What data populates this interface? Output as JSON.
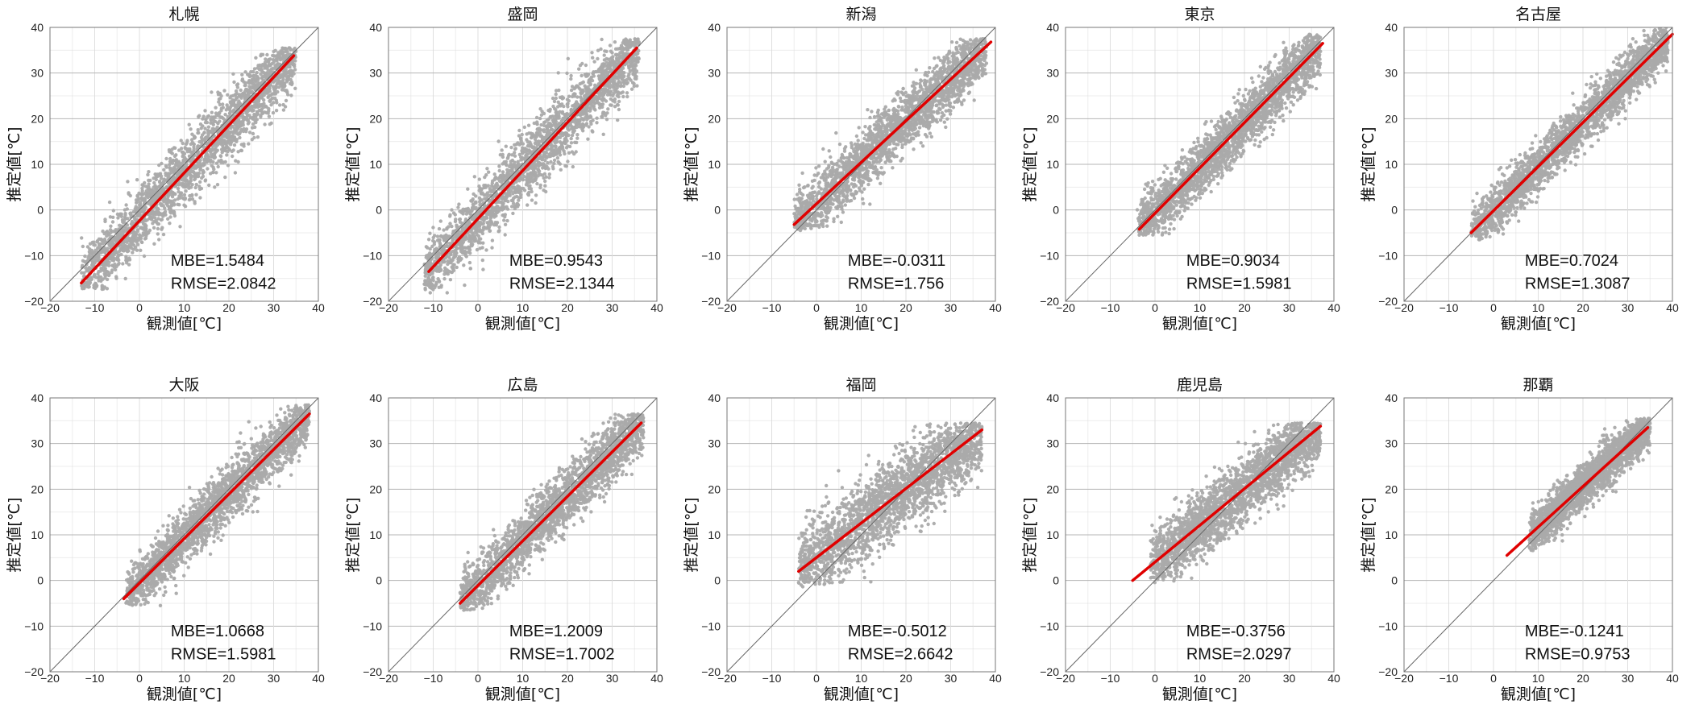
{
  "figure": {
    "xlabel": "観測値[℃]",
    "ylabel": "推定値[℃]",
    "xlim": [
      -20,
      40
    ],
    "ylim": [
      -20,
      40
    ],
    "xticks": [
      "−20",
      "−10",
      "0",
      "10",
      "20",
      "30",
      "40"
    ],
    "yticks": [
      "−20",
      "−10",
      "0",
      "10",
      "20",
      "30",
      "40"
    ],
    "grid": true,
    "colors": {
      "scatter": "#aaaaaa",
      "fit_line": "#e00000",
      "identity_line": "#666666"
    }
  },
  "chart_data": [
    {
      "type": "scatter",
      "title": "札幌",
      "xlabel": "観測値[℃]",
      "ylabel": "推定値[℃]",
      "xlim": [
        -20,
        40
      ],
      "ylim": [
        -20,
        40
      ],
      "mbe_text": "MBE=1.5484",
      "rmse_text": "RMSE=2.0842",
      "MBE": 1.5484,
      "RMSE": 2.0842,
      "data_range": {
        "x": [
          -13,
          35
        ],
        "y": [
          -16,
          34
        ]
      },
      "fit_line": {
        "x": [
          -13,
          34.5
        ],
        "y": [
          -16,
          33.8
        ]
      },
      "identity_line": {
        "x": [
          -20,
          40
        ],
        "y": [
          -20,
          40
        ]
      }
    },
    {
      "type": "scatter",
      "title": "盛岡",
      "xlabel": "観測値[℃]",
      "ylabel": "推定値[℃]",
      "xlim": [
        -20,
        40
      ],
      "ylim": [
        -20,
        40
      ],
      "mbe_text": "MBE=0.9543",
      "rmse_text": "RMSE=2.1344",
      "MBE": 0.9543,
      "RMSE": 2.1344,
      "data_range": {
        "x": [
          -12,
          36
        ],
        "y": [
          -17,
          36
        ]
      },
      "fit_line": {
        "x": [
          -11,
          35.5
        ],
        "y": [
          -13.5,
          35.5
        ]
      },
      "identity_line": {
        "x": [
          -20,
          40
        ],
        "y": [
          -20,
          40
        ]
      }
    },
    {
      "type": "scatter",
      "title": "新潟",
      "xlabel": "観測値[℃]",
      "ylabel": "推定値[℃]",
      "xlim": [
        -20,
        40
      ],
      "ylim": [
        -20,
        40
      ],
      "mbe_text": "MBE=-0.0311",
      "rmse_text": "RMSE=1.756",
      "MBE": -0.0311,
      "RMSE": 1.756,
      "data_range": {
        "x": [
          -5,
          38
        ],
        "y": [
          -3,
          36
        ]
      },
      "fit_line": {
        "x": [
          -5,
          39
        ],
        "y": [
          -3.2,
          36.8
        ]
      },
      "identity_line": {
        "x": [
          -20,
          40
        ],
        "y": [
          -20,
          40
        ]
      }
    },
    {
      "type": "scatter",
      "title": "東京",
      "xlabel": "観測値[℃]",
      "ylabel": "推定値[℃]",
      "xlim": [
        -20,
        40
      ],
      "ylim": [
        -20,
        40
      ],
      "mbe_text": "MBE=0.9034",
      "rmse_text": "RMSE=1.5981",
      "MBE": 0.9034,
      "RMSE": 1.5981,
      "data_range": {
        "x": [
          -4,
          37
        ],
        "y": [
          -4,
          37
        ]
      },
      "fit_line": {
        "x": [
          -3.5,
          37.5
        ],
        "y": [
          -4.2,
          36.5
        ]
      },
      "identity_line": {
        "x": [
          -20,
          40
        ],
        "y": [
          -20,
          40
        ]
      }
    },
    {
      "type": "scatter",
      "title": "名古屋",
      "xlabel": "観測値[℃]",
      "ylabel": "推定値[℃]",
      "xlim": [
        -20,
        40
      ],
      "ylim": [
        -20,
        40
      ],
      "mbe_text": "MBE=0.7024",
      "rmse_text": "RMSE=1.3087",
      "MBE": 0.7024,
      "RMSE": 1.3087,
      "data_range": {
        "x": [
          -5,
          39
        ],
        "y": [
          -5,
          39
        ]
      },
      "fit_line": {
        "x": [
          -5,
          40
        ],
        "y": [
          -5,
          38.5
        ]
      },
      "identity_line": {
        "x": [
          -20,
          40
        ],
        "y": [
          -20,
          40
        ]
      }
    },
    {
      "type": "scatter",
      "title": "大阪",
      "xlabel": "観測値[℃]",
      "ylabel": "推定値[℃]",
      "xlim": [
        -20,
        40
      ],
      "ylim": [
        -20,
        40
      ],
      "mbe_text": "MBE=1.0668",
      "rmse_text": "RMSE=1.5981",
      "MBE": 1.0668,
      "RMSE": 1.5981,
      "data_range": {
        "x": [
          -3,
          38
        ],
        "y": [
          -4,
          37
        ]
      },
      "fit_line": {
        "x": [
          -3.5,
          38
        ],
        "y": [
          -4,
          36.5
        ]
      },
      "identity_line": {
        "x": [
          -20,
          40
        ],
        "y": [
          -20,
          40
        ]
      }
    },
    {
      "type": "scatter",
      "title": "広島",
      "xlabel": "観測値[℃]",
      "ylabel": "推定値[℃]",
      "xlim": [
        -20,
        40
      ],
      "ylim": [
        -20,
        40
      ],
      "mbe_text": "MBE=1.2009",
      "rmse_text": "RMSE=1.7002",
      "MBE": 1.2009,
      "RMSE": 1.7002,
      "data_range": {
        "x": [
          -4,
          37
        ],
        "y": [
          -5,
          35
        ]
      },
      "fit_line": {
        "x": [
          -4,
          36.5
        ],
        "y": [
          -5,
          34.5
        ]
      },
      "identity_line": {
        "x": [
          -20,
          40
        ],
        "y": [
          -20,
          40
        ]
      }
    },
    {
      "type": "scatter",
      "title": "福岡",
      "xlabel": "観測値[℃]",
      "ylabel": "推定値[℃]",
      "xlim": [
        -20,
        40
      ],
      "ylim": [
        -20,
        40
      ],
      "mbe_text": "MBE=-0.5012",
      "rmse_text": "RMSE=2.6642",
      "MBE": -0.5012,
      "RMSE": 2.6642,
      "data_range": {
        "x": [
          -4,
          37
        ],
        "y": [
          0,
          33
        ]
      },
      "fit_line": {
        "x": [
          -4,
          37
        ],
        "y": [
          2,
          33
        ]
      },
      "identity_line": {
        "x": [
          -20,
          40
        ],
        "y": [
          -20,
          40
        ]
      }
    },
    {
      "type": "scatter",
      "title": "鹿児島",
      "xlabel": "観測値[℃]",
      "ylabel": "推定値[℃]",
      "xlim": [
        -20,
        40
      ],
      "ylim": [
        -20,
        40
      ],
      "mbe_text": "MBE=-0.3756",
      "rmse_text": "RMSE=2.0297",
      "MBE": -0.3756,
      "RMSE": 2.0297,
      "data_range": {
        "x": [
          -1,
          37
        ],
        "y": [
          1,
          33
        ]
      },
      "fit_line": {
        "x": [
          -5,
          37
        ],
        "y": [
          0,
          33.8
        ]
      },
      "identity_line": {
        "x": [
          -20,
          40
        ],
        "y": [
          -20,
          40
        ]
      }
    },
    {
      "type": "scatter",
      "title": "那覇",
      "xlabel": "観測値[℃]",
      "ylabel": "推定値[℃]",
      "xlim": [
        -20,
        40
      ],
      "ylim": [
        -20,
        40
      ],
      "mbe_text": "MBE=-0.1241",
      "rmse_text": "RMSE=0.9753",
      "MBE": -0.1241,
      "RMSE": 0.9753,
      "data_range": {
        "x": [
          8,
          35
        ],
        "y": [
          8,
          34
        ]
      },
      "fit_line": {
        "x": [
          3,
          34.5
        ],
        "y": [
          5.5,
          33.5
        ]
      },
      "identity_line": {
        "x": [
          -20,
          40
        ],
        "y": [
          -20,
          40
        ]
      }
    }
  ]
}
